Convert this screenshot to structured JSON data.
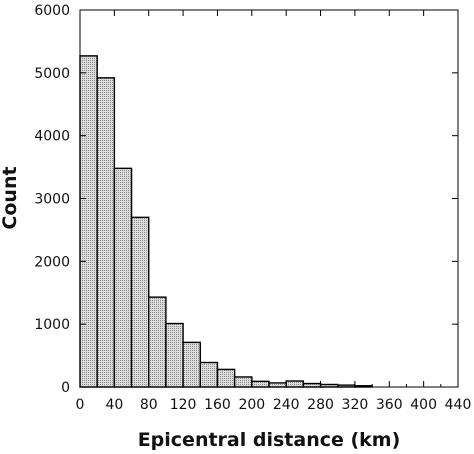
{
  "chart_data": {
    "type": "bar",
    "title": "",
    "xlabel": "Epicentral distance (km)",
    "ylabel": "Count",
    "xlim": [
      0,
      440
    ],
    "ylim": [
      0,
      6000
    ],
    "xticks": [
      0,
      40,
      80,
      120,
      160,
      200,
      240,
      280,
      320,
      360,
      400,
      440
    ],
    "yticks": [
      0,
      1000,
      2000,
      3000,
      4000,
      5000,
      6000
    ],
    "bin_width": 20,
    "bins": [
      {
        "x0": 0,
        "x1": 20,
        "value": 5270
      },
      {
        "x0": 20,
        "x1": 40,
        "value": 4920
      },
      {
        "x0": 40,
        "x1": 60,
        "value": 3480
      },
      {
        "x0": 60,
        "x1": 80,
        "value": 2700
      },
      {
        "x0": 80,
        "x1": 100,
        "value": 1430
      },
      {
        "x0": 100,
        "x1": 120,
        "value": 1010
      },
      {
        "x0": 120,
        "x1": 140,
        "value": 710
      },
      {
        "x0": 140,
        "x1": 160,
        "value": 390
      },
      {
        "x0": 160,
        "x1": 180,
        "value": 280
      },
      {
        "x0": 180,
        "x1": 200,
        "value": 160
      },
      {
        "x0": 200,
        "x1": 220,
        "value": 90
      },
      {
        "x0": 220,
        "x1": 240,
        "value": 65
      },
      {
        "x0": 240,
        "x1": 260,
        "value": 95
      },
      {
        "x0": 260,
        "x1": 280,
        "value": 55
      },
      {
        "x0": 280,
        "x1": 300,
        "value": 40
      },
      {
        "x0": 300,
        "x1": 320,
        "value": 30
      },
      {
        "x0": 320,
        "x1": 340,
        "value": 20
      }
    ],
    "bar_fill": "#d6d6d6",
    "bar_stroke": "#000000",
    "grid": false,
    "legend": false
  }
}
